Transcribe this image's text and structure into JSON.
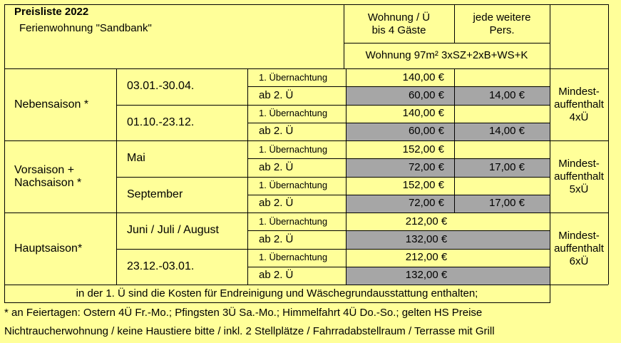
{
  "title": "Preisliste 2022",
  "subtitle": "Ferienwohnung \"Sandbank\"",
  "header": {
    "col_apartment": "Wohnung / Ü\nbis 4 Gäste",
    "col_extra": "jede weitere\nPers.",
    "apartment_desc": "Wohnung 97m² 3xSZ+2xB+WS+K"
  },
  "seasons": [
    {
      "name": "Nebensaison *",
      "min_stay": "Mindest-\nauffenthalt\n4xÜ",
      "periods": [
        {
          "dates": "03.01.-30.04.",
          "first_label": "1. Übernachtung",
          "first_price": "140,00 €",
          "next_label": "ab 2. Ü",
          "next_price": "60,00 €",
          "extra_price": "14,00 €"
        },
        {
          "dates": "01.10.-23.12.",
          "first_label": "1. Übernachtung",
          "first_price": "140,00 €",
          "next_label": "ab 2. Ü",
          "next_price": "60,00 €",
          "extra_price": "14,00 €"
        }
      ]
    },
    {
      "name": "Vorsaison +\nNachsaison *",
      "min_stay": "Mindest-\nauffenthalt\n5xÜ",
      "periods": [
        {
          "dates": "Mai",
          "first_label": "1. Übernachtung",
          "first_price": "152,00 €",
          "next_label": "ab 2. Ü",
          "next_price": "72,00 €",
          "extra_price": "17,00 €"
        },
        {
          "dates": "September",
          "first_label": "1. Übernachtung",
          "first_price": "152,00 €",
          "next_label": "ab 2. Ü",
          "next_price": "72,00 €",
          "extra_price": "17,00 €"
        }
      ]
    },
    {
      "name": "Hauptsaison*",
      "min_stay": "Mindest-\nauffenthalt\n6xÜ",
      "periods": [
        {
          "dates": "Juni / Juli / August",
          "first_label": "1. Übernachtung",
          "first_price": "212,00 €",
          "next_label": "ab 2. Ü",
          "next_price": "132,00 €",
          "extra_price": ""
        },
        {
          "dates": "23.12.-03.01.",
          "first_label": "1. Übernachtung",
          "first_price": "212,00 €",
          "next_label": "ab 2. Ü",
          "next_price": "132,00 €",
          "extra_price": ""
        }
      ]
    }
  ],
  "note": "in der 1. Ü sind die Kosten für Endreinigung und Wäschegrundausstattung enthalten;",
  "footer": {
    "holidays": "* an Feiertagen: Ostern 4Ü Fr.-Mo.; Pfingsten 3Ü Sa.-Mo.; Himmelfahrt 4Ü Do.-So.; gelten HS Preise",
    "rules": "Nichtraucherwohnung / keine Haustiere bitte / inkl. 2 Stellplätze / Fahrradabstellraum / Terrasse mit Grill"
  }
}
